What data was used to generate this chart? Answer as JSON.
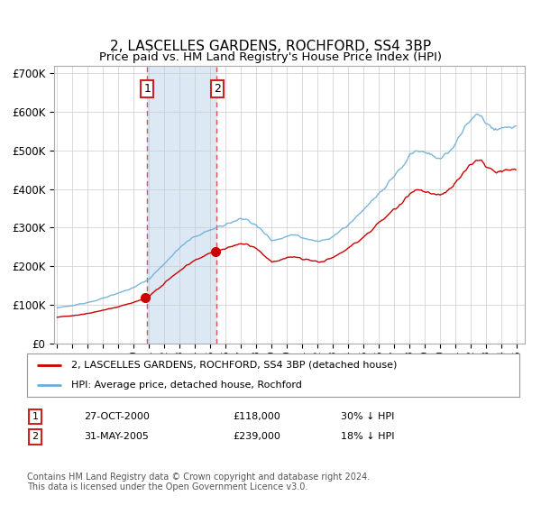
{
  "title": "2, LASCELLES GARDENS, ROCHFORD, SS4 3BP",
  "subtitle": "Price paid vs. HM Land Registry's House Price Index (HPI)",
  "legend_line1": "2, LASCELLES GARDENS, ROCHFORD, SS4 3BP (detached house)",
  "legend_line2": "HPI: Average price, detached house, Rochford",
  "footnote": "Contains HM Land Registry data © Crown copyright and database right 2024.\nThis data is licensed under the Open Government Licence v3.0.",
  "sale1_date": "27-OCT-2000",
  "sale1_price": "£118,000",
  "sale1_hpi": "30% ↓ HPI",
  "sale1_label": "1",
  "sale2_date": "31-MAY-2005",
  "sale2_price": "£239,000",
  "sale2_hpi": "18% ↓ HPI",
  "sale2_label": "2",
  "red_line_color": "#cc0000",
  "blue_line_color": "#6baed6",
  "background_color": "#ffffff",
  "grid_color": "#cccccc",
  "shaded_color": "#dce9f5",
  "sale1_x": 2000.83,
  "sale2_x": 2005.41,
  "ylim_min": 0,
  "ylim_max": 720000,
  "xlim_min": 1994.8,
  "xlim_max": 2025.5
}
